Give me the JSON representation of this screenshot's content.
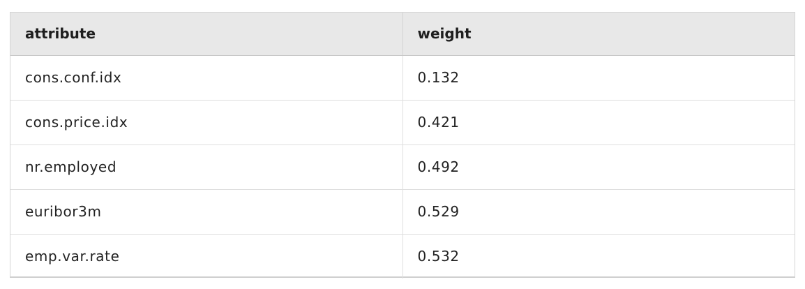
{
  "table": {
    "columns": [
      "attribute",
      "weight"
    ],
    "rows": [
      {
        "attribute": "cons.conf.idx",
        "weight": "0.132"
      },
      {
        "attribute": "cons.price.idx",
        "weight": "0.421"
      },
      {
        "attribute": "nr.employed",
        "weight": "0.492"
      },
      {
        "attribute": "euribor3m",
        "weight": "0.529"
      },
      {
        "attribute": "emp.var.rate",
        "weight": "0.532"
      }
    ]
  }
}
